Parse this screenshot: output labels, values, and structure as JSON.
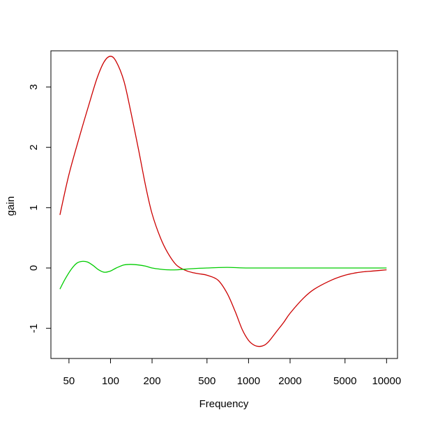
{
  "chart_data": {
    "type": "line",
    "title": "",
    "xlabel": "Frequency",
    "ylabel": "gain",
    "x_scale": "log",
    "xlim": [
      37,
      12000
    ],
    "ylim": [
      -1.5,
      3.6
    ],
    "x_ticks": [
      50,
      100,
      200,
      500,
      1000,
      2000,
      5000,
      10000
    ],
    "x_tick_labels": [
      "50",
      "100",
      "200",
      "500",
      "1000",
      "2000",
      "5000",
      "10000"
    ],
    "y_ticks": [
      -1,
      0,
      1,
      2,
      3
    ],
    "y_tick_labels": [
      "-1",
      "0",
      "1",
      "2",
      "3"
    ],
    "grid": false,
    "legend": "none",
    "series": [
      {
        "color": "#cc0000",
        "x": [
          43,
          50,
          60,
          70,
          80,
          90,
          100,
          110,
          125,
          140,
          160,
          180,
          200,
          230,
          260,
          300,
          350,
          400,
          450,
          500,
          600,
          700,
          800,
          900,
          1000,
          1100,
          1200,
          1300,
          1400,
          1600,
          1800,
          2000,
          2500,
          3000,
          4000,
          5000,
          6000,
          7000,
          8000,
          10000
        ],
        "y": [
          0.88,
          1.55,
          2.2,
          2.72,
          3.15,
          3.42,
          3.51,
          3.42,
          3.1,
          2.6,
          1.95,
          1.35,
          0.9,
          0.5,
          0.25,
          0.05,
          -0.04,
          -0.08,
          -0.1,
          -0.12,
          -0.2,
          -0.42,
          -0.72,
          -1.02,
          -1.2,
          -1.28,
          -1.3,
          -1.28,
          -1.22,
          -1.05,
          -0.9,
          -0.75,
          -0.5,
          -0.35,
          -0.2,
          -0.12,
          -0.08,
          -0.06,
          -0.05,
          -0.03
        ]
      },
      {
        "color": "#00cc00",
        "x": [
          43,
          47,
          52,
          57,
          62,
          68,
          75,
          82,
          90,
          100,
          110,
          125,
          140,
          160,
          180,
          200,
          230,
          260,
          300,
          400,
          500,
          700,
          1000,
          2000,
          5000,
          10000
        ],
        "y": [
          -0.35,
          -0.18,
          -0.02,
          0.08,
          0.11,
          0.1,
          0.04,
          -0.03,
          -0.07,
          -0.05,
          0.0,
          0.05,
          0.06,
          0.05,
          0.03,
          0.0,
          -0.02,
          -0.03,
          -0.03,
          -0.01,
          0.0,
          0.01,
          0.0,
          0.0,
          0.0,
          0.0
        ]
      }
    ]
  }
}
